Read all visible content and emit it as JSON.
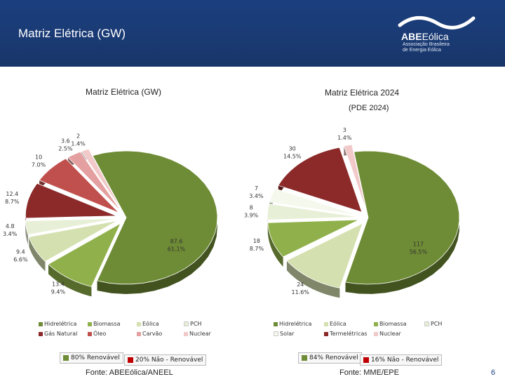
{
  "header": {
    "title": "Matriz Elétrica (GW)",
    "logo_name_bold": "ABE",
    "logo_name_light": "Eólica",
    "logo_sub_1": "Associação Brasileira",
    "logo_sub_2": "de Energia Eólica"
  },
  "colors": {
    "header_bg": "#1b3f7e",
    "hidreletrica": "#6e8b35",
    "biomassa": "#8fb04a",
    "eolica": "#d4e0b0",
    "pch": "#e8efd7",
    "gas_natural": "#8c2a2a",
    "oleo": "#c0504d",
    "carvao": "#e4a0a0",
    "nuclear": "#f2c9c9",
    "termeletricas": "#8c2a2a",
    "solar": "#f5f8ec"
  },
  "chart_data": [
    {
      "type": "pie",
      "title": "Matriz Elétrica (GW)",
      "slices": [
        {
          "name": "Hidrelétrica",
          "value": 87.6,
          "percent": "61.1%",
          "color": "#6e8b35"
        },
        {
          "name": "Biomassa",
          "value": 13.4,
          "percent": "9.4%",
          "color": "#8fb04a"
        },
        {
          "name": "Eólica",
          "value": 9.4,
          "percent": "6.6%",
          "color": "#d4e0b0"
        },
        {
          "name": "PCH",
          "value": 4.8,
          "percent": "3.4%",
          "color": "#e8efd7"
        },
        {
          "name": "Gás Natural",
          "value": 12.4,
          "percent": "8.7%",
          "color": "#8c2a2a"
        },
        {
          "name": "Óleo",
          "value": 10.0,
          "percent": "7.0%",
          "color": "#c0504d"
        },
        {
          "name": "Carvão",
          "value": 3.6,
          "percent": "2.5%",
          "color": "#e4a0a0"
        },
        {
          "name": "Nuclear",
          "value": 2.0,
          "percent": "1.4%",
          "color": "#f2c9c9"
        }
      ],
      "legend": [
        "Hidrelétrica",
        "Biomassa",
        "Eólica",
        "PCH",
        "Gás Natural",
        "Óleo",
        "Carvão",
        "Nuclear"
      ],
      "renewable_label": "80% Renovável",
      "nonrenewable_label": "20% Não - Renovável",
      "source": "Fonte: ABEEólica/ANEEL"
    },
    {
      "type": "pie",
      "title": "Matriz Elétrica 2024",
      "subtitle": "(PDE 2024)",
      "slices": [
        {
          "name": "Hidrelétrica",
          "value": 117,
          "percent": "56.5%",
          "color": "#6e8b35"
        },
        {
          "name": "Eólica",
          "value": 24,
          "percent": "11.6%",
          "color": "#d4e0b0"
        },
        {
          "name": "Biomassa",
          "value": 18,
          "percent": "8.7%",
          "color": "#8fb04a"
        },
        {
          "name": "PCH",
          "value": 8,
          "percent": "3.9%",
          "color": "#e8efd7"
        },
        {
          "name": "Solar",
          "value": 7,
          "percent": "3.4%",
          "color": "#f5f8ec"
        },
        {
          "name": "Termelétricas",
          "value": 30,
          "percent": "14.5%",
          "color": "#8c2a2a"
        },
        {
          "name": "Nuclear",
          "value": 3,
          "percent": "1.4%",
          "color": "#f2c9c9"
        }
      ],
      "legend": [
        "Hidrelétrica",
        "Eólica",
        "Biomassa",
        "PCH",
        "Solar",
        "Termelétricas",
        "Nuclear"
      ],
      "renewable_label": "84% Renovável",
      "nonrenewable_label": "16% Não - Renovável",
      "source": "Fonte: MME/EPE"
    }
  ],
  "page_number": "6"
}
